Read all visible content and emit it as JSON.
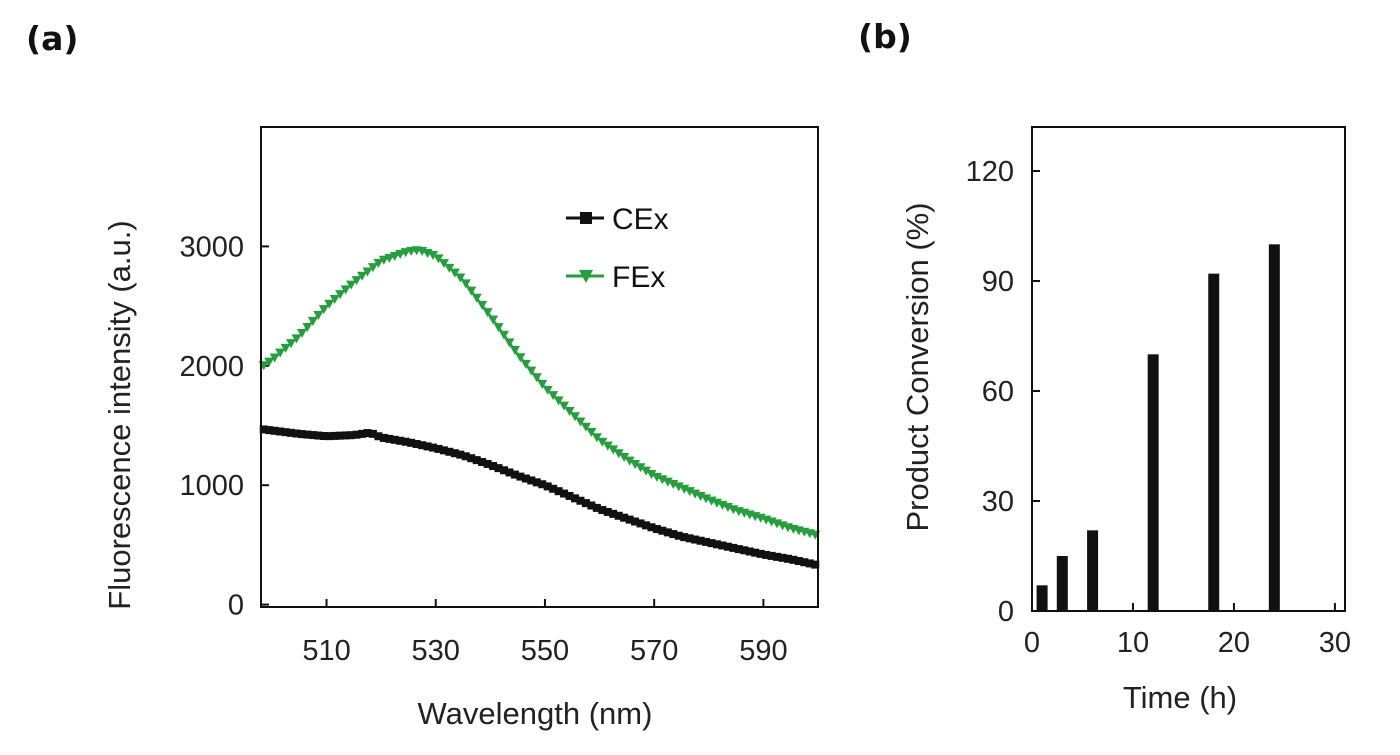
{
  "panels": {
    "a_label": "(a)",
    "b_label": "(b)"
  },
  "colors": {
    "cex": "#111111",
    "fex": "#22a03a",
    "bar": "#111111",
    "axis": "#111111"
  },
  "chart_data": [
    {
      "id": "a",
      "type": "line",
      "xlabel": "Wavelength (nm)",
      "ylabel": "Fluorescence intensity (a.u.)",
      "xlim": [
        498,
        600
      ],
      "ylim": [
        -20,
        4000
      ],
      "xticks": [
        510,
        530,
        550,
        570,
        590
      ],
      "yticks": [
        0,
        1000,
        2000,
        3000
      ],
      "legend_position": "top-right",
      "grid": false,
      "series": [
        {
          "name": "CEx",
          "marker": "square",
          "color": "#111111",
          "x": [
            498,
            505,
            510,
            515,
            518,
            520,
            525,
            530,
            535,
            540,
            545,
            550,
            555,
            560,
            565,
            570,
            575,
            580,
            585,
            590,
            595,
            600
          ],
          "y": [
            1470,
            1430,
            1410,
            1420,
            1440,
            1400,
            1360,
            1310,
            1250,
            1170,
            1080,
            1000,
            900,
            800,
            720,
            640,
            570,
            520,
            470,
            420,
            380,
            330
          ]
        },
        {
          "name": "FEx",
          "marker": "triangle-down",
          "color": "#22a03a",
          "x": [
            498,
            500,
            505,
            510,
            515,
            520,
            525,
            527,
            530,
            535,
            540,
            545,
            550,
            555,
            560,
            565,
            570,
            575,
            580,
            585,
            590,
            595,
            600
          ],
          "y": [
            1990,
            2050,
            2250,
            2500,
            2700,
            2880,
            2960,
            2970,
            2920,
            2720,
            2420,
            2100,
            1820,
            1600,
            1380,
            1220,
            1080,
            980,
            880,
            790,
            720,
            640,
            580
          ]
        }
      ]
    },
    {
      "id": "b",
      "type": "bar",
      "xlabel": "Time (h)",
      "ylabel": "Product Conversion (%)",
      "xlim": [
        0,
        31
      ],
      "ylim": [
        0,
        132
      ],
      "xticks": [
        0,
        10,
        20,
        30
      ],
      "yticks": [
        0,
        30,
        60,
        90,
        120
      ],
      "x": [
        1,
        3,
        6,
        12,
        18,
        24
      ],
      "values": [
        7,
        15,
        22,
        70,
        92,
        100
      ]
    }
  ]
}
